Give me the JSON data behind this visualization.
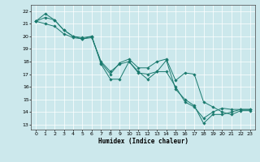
{
  "title": "",
  "xlabel": "Humidex (Indice chaleur)",
  "ylabel": "",
  "background_color": "#cce8ec",
  "grid_color": "#ffffff",
  "line_color": "#1a7a6e",
  "xlim": [
    -0.5,
    23.5
  ],
  "ylim": [
    12.6,
    22.5
  ],
  "xticks": [
    0,
    1,
    2,
    3,
    4,
    5,
    6,
    7,
    8,
    9,
    10,
    11,
    12,
    13,
    14,
    15,
    16,
    17,
    18,
    19,
    20,
    21,
    22,
    23
  ],
  "yticks": [
    13,
    14,
    15,
    16,
    17,
    18,
    19,
    20,
    21,
    22
  ],
  "series": [
    [
      21.2,
      21.8,
      21.3,
      20.5,
      20.0,
      19.9,
      20.0,
      17.8,
      16.6,
      16.6,
      18.0,
      17.2,
      16.6,
      17.2,
      18.1,
      15.8,
      15.0,
      14.5,
      13.1,
      13.8,
      13.8,
      14.0,
      14.2,
      14.2
    ],
    [
      21.2,
      21.5,
      21.3,
      20.5,
      20.0,
      19.8,
      19.9,
      18.0,
      17.2,
      17.8,
      18.0,
      17.1,
      17.0,
      17.2,
      17.2,
      16.0,
      14.8,
      14.4,
      13.5,
      14.0,
      14.3,
      14.2,
      14.2,
      14.2
    ],
    [
      21.2,
      21.0,
      20.8,
      20.2,
      19.9,
      19.8,
      20.0,
      17.9,
      17.0,
      17.9,
      18.2,
      17.5,
      17.5,
      18.0,
      18.2,
      16.5,
      17.1,
      17.0,
      14.8,
      14.4,
      14.0,
      13.8,
      14.1,
      14.1
    ]
  ]
}
